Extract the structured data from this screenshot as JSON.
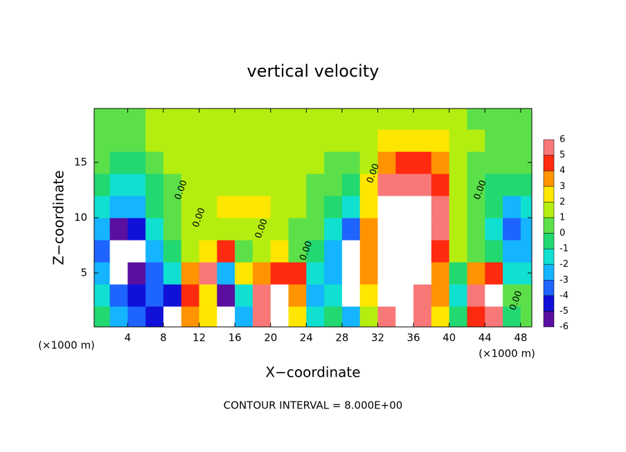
{
  "chart_data": {
    "type": "heatmap",
    "title": "vertical velocity",
    "x_label": "X−coordinate",
    "y_label": "Z−coordinate",
    "x_unit_label_left": "(×1000 m)",
    "x_unit_label_right": "(×1000 m)",
    "footer": "CONTOUR INTERVAL = 8.000E+00",
    "xlim": [
      0.25,
      49.25
    ],
    "ylim": [
      0.125,
      19.875
    ],
    "xticks": [
      4,
      8,
      12,
      16,
      20,
      24,
      28,
      32,
      36,
      40,
      44,
      48
    ],
    "yticks": [
      5,
      10,
      15
    ],
    "x": [
      1,
      3,
      5,
      7,
      9,
      11,
      13,
      15,
      17,
      19,
      21,
      23,
      25,
      27,
      29,
      31,
      33,
      35,
      37,
      39,
      41,
      43,
      45,
      47,
      49
    ],
    "y": [
      1,
      3,
      5,
      7,
      9,
      11,
      13,
      15,
      17,
      19
    ],
    "z": [
      [
        -1,
        -3,
        -4,
        -5,
        -7,
        3,
        2,
        -7,
        -3,
        5,
        7,
        2,
        -2,
        -1,
        -3,
        1,
        6,
        8,
        5,
        2,
        -1,
        4,
        5,
        -1,
        0
      ],
      [
        -2,
        -4,
        -5,
        -4,
        -5,
        4,
        2,
        -6,
        -2,
        5,
        7,
        3,
        -3,
        -2,
        -7,
        2,
        8,
        8,
        6,
        3,
        -2,
        5,
        7,
        0,
        0
      ],
      [
        -3,
        -7,
        -6,
        -4,
        -2,
        3,
        5,
        -3,
        2,
        3,
        4,
        4,
        -2,
        -3,
        -7,
        3,
        8,
        8,
        7,
        3,
        -1,
        3,
        4,
        -2,
        -2
      ],
      [
        -4,
        -7,
        -7,
        -3,
        -1,
        1,
        2,
        4,
        0,
        1,
        2,
        0,
        -1,
        -3,
        -7,
        3,
        8,
        8,
        7,
        4,
        1,
        0,
        -1,
        -3,
        -3
      ],
      [
        -3,
        -6,
        -5,
        -2,
        0,
        1,
        1,
        1,
        1,
        1,
        1,
        0,
        0,
        -2,
        -4,
        3,
        8,
        8,
        8,
        5,
        1,
        0,
        -2,
        -4,
        -3
      ],
      [
        -2,
        -3,
        -3,
        -1,
        0,
        1,
        1,
        2,
        2,
        2,
        1,
        1,
        0,
        -1,
        -2,
        2,
        7,
        8,
        8,
        5,
        1,
        0,
        -1,
        -3,
        -2
      ],
      [
        -1,
        -2,
        -2,
        -1,
        0,
        1,
        1,
        1,
        1,
        1,
        1,
        1,
        0,
        0,
        -1,
        2,
        5,
        6,
        6,
        4,
        1,
        0,
        -1,
        -1,
        -1
      ],
      [
        0,
        -1,
        -1,
        0,
        1,
        1,
        1,
        1,
        1,
        1,
        1,
        1,
        1,
        0,
        0,
        1,
        3,
        4,
        4,
        3,
        1,
        0,
        0,
        0,
        0
      ],
      [
        0,
        0,
        0,
        1,
        1,
        1,
        1,
        1,
        1,
        1,
        1,
        1,
        1,
        1,
        1,
        1,
        2,
        2,
        2,
        2,
        1,
        1,
        0,
        0,
        0
      ],
      [
        0,
        0,
        0,
        1,
        1,
        1,
        1,
        1,
        1,
        1,
        1,
        1,
        1,
        1,
        1,
        1,
        1,
        1,
        1,
        1,
        1,
        0,
        0,
        0,
        0
      ]
    ],
    "levels": [
      -6,
      -5,
      -4,
      -3,
      -2,
      -1,
      0,
      1,
      2,
      3,
      4,
      5,
      6
    ],
    "colors": [
      "#5a0fa0",
      "#1010d8",
      "#1e64ff",
      "#14b4ff",
      "#10e0d0",
      "#22d870",
      "#5ce04a",
      "#b4ee10",
      "#ffe600",
      "#ff9400",
      "#ff2a10",
      "#f87878"
    ],
    "out_of_range_color": "#ffffff",
    "contour_labels": [
      {
        "text": "0.00",
        "x": 10,
        "y": 12.5
      },
      {
        "text": "0.00",
        "x": 12,
        "y": 10
      },
      {
        "text": "0.00",
        "x": 19,
        "y": 9
      },
      {
        "text": "0.00",
        "x": 24,
        "y": 7
      },
      {
        "text": "0.00",
        "x": 31.5,
        "y": 14
      },
      {
        "text": "0.00",
        "x": 43.5,
        "y": 12.5
      },
      {
        "text": "0.00",
        "x": 47.5,
        "y": 2.5
      }
    ]
  }
}
